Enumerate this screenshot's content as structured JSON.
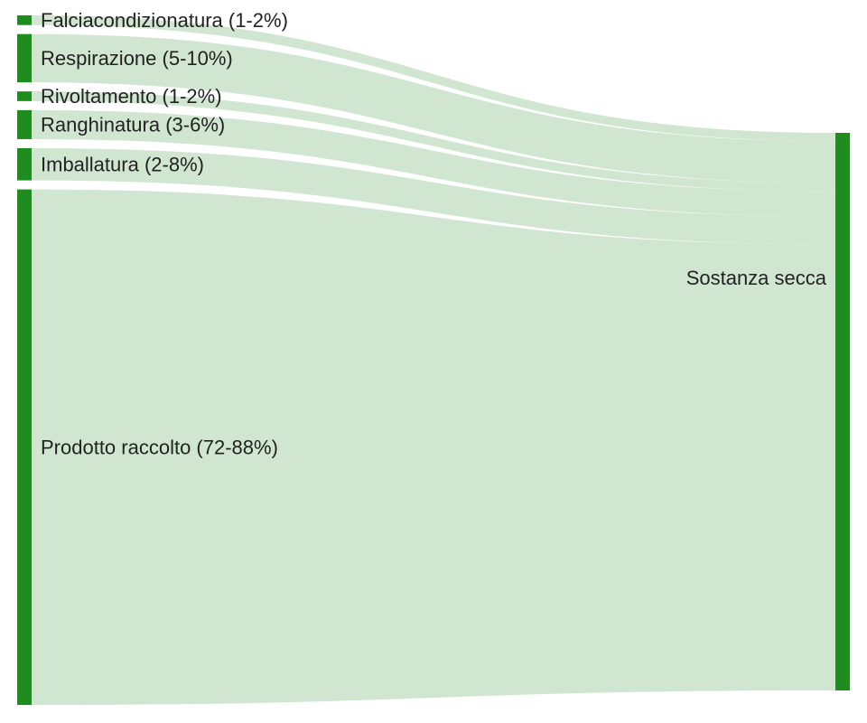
{
  "chart_data": {
    "type": "sankey",
    "title": "",
    "sources": [
      {
        "label": "Falciacondizionatura (1-2%)",
        "value": 1.5
      },
      {
        "label": "Respirazione (5-10%)",
        "value": 7.5
      },
      {
        "label": "Rivoltamento (1-2%)",
        "value": 1.5
      },
      {
        "label": "Ranghinatura (3-6%)",
        "value": 4.5
      },
      {
        "label": "Imballatura (2-8%)",
        "value": 5
      },
      {
        "label": "Prodotto raccolto (72-88%)",
        "value": 80
      }
    ],
    "target": {
      "label": "Sostanza secca"
    },
    "links": [
      {
        "source": "Falciacondizionatura (1-2%)",
        "target": "Sostanza secca",
        "value": 1.5
      },
      {
        "source": "Respirazione (5-10%)",
        "target": "Sostanza secca",
        "value": 7.5
      },
      {
        "source": "Rivoltamento (1-2%)",
        "target": "Sostanza secca",
        "value": 1.5
      },
      {
        "source": "Ranghinatura (3-6%)",
        "target": "Sostanza secca",
        "value": 4.5
      },
      {
        "source": "Imballatura (2-8%)",
        "target": "Sostanza secca",
        "value": 5
      },
      {
        "source": "Prodotto raccolto (72-88%)",
        "target": "Sostanza secca",
        "value": 80
      }
    ],
    "colors": {
      "node": "#1e8c1e",
      "link": "#cde5cd",
      "label": "#222222",
      "background": "#ffffff"
    }
  }
}
